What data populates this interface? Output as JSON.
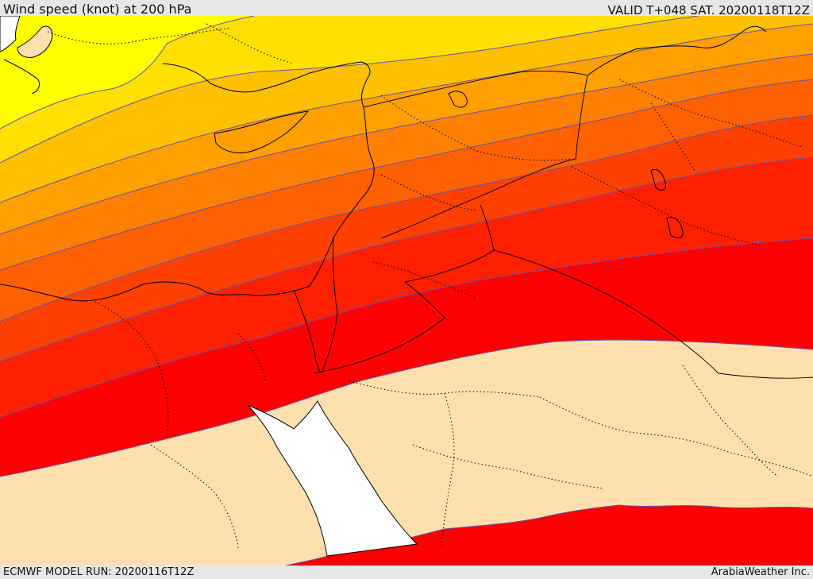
{
  "header": {
    "title": "Wind speed (knot) at 200 hPa",
    "valid": "VALID T+048 SAT. 20200118T12Z"
  },
  "footer": {
    "model_run": "ECMWF MODEL RUN: 20200116T12Z",
    "credit": "ArabiaWeather Inc."
  },
  "legend_colors": {
    "band_1": "#ffff00",
    "band_2": "#ffe000",
    "band_3": "#ffc000",
    "band_4": "#ffa000",
    "band_5": "#ff8000",
    "band_6": "#ff6000",
    "band_7": "#ff4000",
    "band_8": "#ff2000",
    "band_9": "#ff0000",
    "low_speed": "#fde0ae",
    "sea": "#ffffff"
  }
}
